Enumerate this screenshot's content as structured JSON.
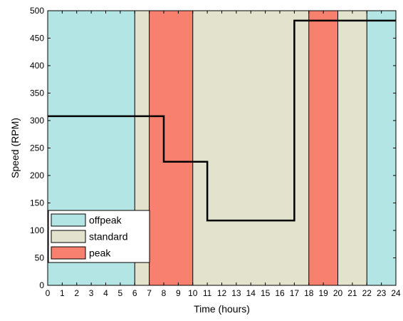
{
  "chart_data": {
    "type": "area",
    "xlabel": "Time (hours)",
    "ylabel": "Speed (RPM)",
    "xlim": [
      0,
      24
    ],
    "ylim": [
      0,
      500
    ],
    "xticks": [
      0,
      1,
      2,
      3,
      4,
      5,
      6,
      7,
      8,
      9,
      10,
      11,
      12,
      13,
      14,
      15,
      16,
      17,
      18,
      19,
      20,
      21,
      22,
      23,
      24
    ],
    "yticks": [
      0,
      50,
      100,
      150,
      200,
      250,
      300,
      350,
      400,
      450,
      500
    ],
    "grid": false,
    "legend_position": "bottom-left",
    "periods": [
      {
        "start": 0,
        "end": 6,
        "category": "offpeak"
      },
      {
        "start": 6,
        "end": 7,
        "category": "standard"
      },
      {
        "start": 7,
        "end": 10,
        "category": "peak"
      },
      {
        "start": 10,
        "end": 18,
        "category": "standard"
      },
      {
        "start": 18,
        "end": 20,
        "category": "peak"
      },
      {
        "start": 20,
        "end": 22,
        "category": "standard"
      },
      {
        "start": 22,
        "end": 24,
        "category": "offpeak"
      }
    ],
    "categories": [
      {
        "name": "offpeak",
        "color": "#b3e5e5"
      },
      {
        "name": "standard",
        "color": "#e3e2cd"
      },
      {
        "name": "peak",
        "color": "#f7806f"
      }
    ],
    "series": [
      {
        "type": "step",
        "color": "#000000",
        "points": [
          [
            0,
            308
          ],
          [
            8,
            308
          ],
          [
            8,
            225
          ],
          [
            11,
            225
          ],
          [
            11,
            118
          ],
          [
            17,
            118
          ],
          [
            17,
            482
          ],
          [
            24,
            482
          ]
        ]
      }
    ]
  }
}
